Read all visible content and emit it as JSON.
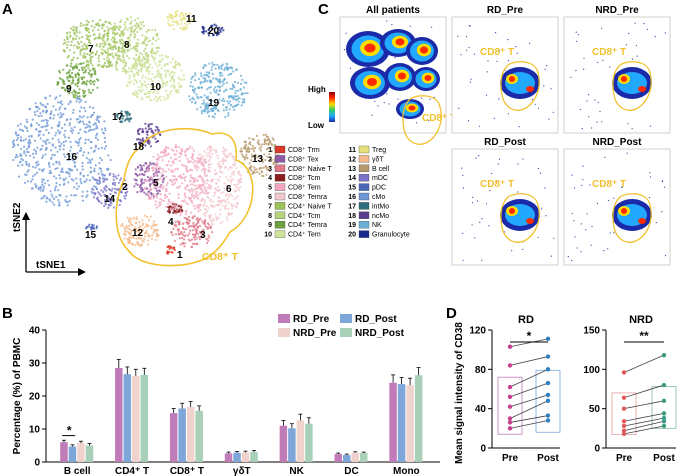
{
  "panels": {
    "a": "A",
    "b": "B",
    "c": "C",
    "d": "D"
  },
  "tsne": {
    "xlabel": "tSNE1",
    "ylabel": "tSNE2",
    "highlight": "CD8⁺ T",
    "clusters": [
      {
        "n": "1",
        "name": "CD8⁺ Trm",
        "color": "#d93a2b"
      },
      {
        "n": "2",
        "name": "CD8⁺ Tex",
        "color": "#8e5aa6"
      },
      {
        "n": "3",
        "name": "CD8⁺ Naive T",
        "color": "#e07a8a"
      },
      {
        "n": "4",
        "name": "CD8⁺ Tcm",
        "color": "#8b1e1e"
      },
      {
        "n": "5",
        "name": "CD8⁺ Tem",
        "color": "#f3a7c2"
      },
      {
        "n": "6",
        "name": "CD8⁺ Temra",
        "color": "#f2c8cf"
      },
      {
        "n": "7",
        "name": "CD4⁺ Naive T",
        "color": "#9cc25a"
      },
      {
        "n": "8",
        "name": "CD4⁺ Tcm",
        "color": "#b8d47a"
      },
      {
        "n": "9",
        "name": "CD4⁺ Temra",
        "color": "#6aa33c"
      },
      {
        "n": "10",
        "name": "CD4⁺ Tem",
        "color": "#cfe39a"
      },
      {
        "n": "11",
        "name": "Treg",
        "color": "#e6e07c"
      },
      {
        "n": "12",
        "name": "γδT",
        "color": "#f5b98a"
      },
      {
        "n": "13",
        "name": "B cell",
        "color": "#b99b6b"
      },
      {
        "n": "14",
        "name": "mDC",
        "color": "#7b74c9"
      },
      {
        "n": "15",
        "name": "pDC",
        "color": "#4b68b8"
      },
      {
        "n": "16",
        "name": "cMo",
        "color": "#6f98d6"
      },
      {
        "n": "17",
        "name": "intMo",
        "color": "#2f6f7f"
      },
      {
        "n": "18",
        "name": "ncMo",
        "color": "#5a3b8c"
      },
      {
        "n": "19",
        "name": "NK",
        "color": "#6aaed6"
      },
      {
        "n": "20",
        "name": "Granulocyte",
        "color": "#1a2a8f"
      }
    ]
  },
  "density": {
    "titles": [
      "All patients",
      "RD_Pre",
      "NRD_Pre",
      "RD_Post",
      "NRD_Post"
    ],
    "label": "CD8⁺ T",
    "scale_high": "High",
    "scale_low": "Low"
  },
  "chart_data": [
    {
      "type": "bar",
      "ylabel": "Percentage (%) of PBMC",
      "ylim": [
        0,
        40
      ],
      "yticks": [
        0,
        10,
        20,
        30,
        40
      ],
      "categories": [
        "B cell",
        "CD4⁺ T",
        "CD8⁺ T",
        "γδT",
        "NK",
        "DC",
        "Mono"
      ],
      "series": [
        {
          "name": "RD_Pre",
          "color": "#c07cb8",
          "values": [
            6.0,
            28.5,
            14.8,
            2.6,
            11.0,
            2.4,
            24.0
          ],
          "errors": [
            0.6,
            2.6,
            1.4,
            0.4,
            1.6,
            0.3,
            2.4
          ]
        },
        {
          "name": "RD_Post",
          "color": "#7ea6d8",
          "values": [
            4.7,
            26.6,
            16.2,
            2.8,
            10.2,
            2.1,
            23.6
          ],
          "errors": [
            0.5,
            2.2,
            1.6,
            0.4,
            1.4,
            0.3,
            2.0
          ]
        },
        {
          "name": "NRD_Pre",
          "color": "#f0d2cc",
          "values": [
            5.7,
            26.1,
            16.7,
            2.9,
            12.6,
            2.8,
            23.3
          ],
          "errors": [
            0.6,
            2.0,
            1.6,
            0.4,
            1.9,
            0.3,
            2.1
          ]
        },
        {
          "name": "NRD_Post",
          "color": "#a8cfb8",
          "values": [
            5.0,
            26.4,
            15.5,
            3.0,
            11.6,
            2.7,
            26.3
          ],
          "errors": [
            0.6,
            2.0,
            1.5,
            0.5,
            1.8,
            0.3,
            2.3
          ]
        }
      ],
      "annotations": [
        {
          "text": "*",
          "category": "B cell"
        }
      ]
    },
    {
      "type": "line",
      "title": "RD",
      "ylabel": "Mean signal intensity of CD38",
      "ylim": [
        0,
        120
      ],
      "yticks": [
        0,
        40,
        80,
        120
      ],
      "categories": [
        "Pre",
        "Post"
      ],
      "pairs": [
        [
          103,
          111
        ],
        [
          84,
          93
        ],
        [
          62,
          80
        ],
        [
          52,
          66
        ],
        [
          42,
          54
        ],
        [
          30,
          48
        ],
        [
          26,
          33
        ],
        [
          20,
          28
        ]
      ],
      "box": {
        "pre": [
          14,
          72
        ],
        "post": [
          16,
          79
        ]
      },
      "significance": "*"
    },
    {
      "type": "line",
      "title": "NRD",
      "ylabel": "",
      "ylim": [
        0,
        150
      ],
      "yticks": [
        0,
        50,
        100,
        150
      ],
      "categories": [
        "Pre",
        "Post"
      ],
      "pairs": [
        [
          96,
          118
        ],
        [
          64,
          80
        ],
        [
          50,
          60
        ],
        [
          34,
          44
        ],
        [
          28,
          38
        ],
        [
          22,
          34
        ],
        [
          18,
          28
        ]
      ],
      "box": {
        "pre": [
          17,
          70
        ],
        "post": [
          25,
          78
        ]
      },
      "significance": "**"
    }
  ]
}
